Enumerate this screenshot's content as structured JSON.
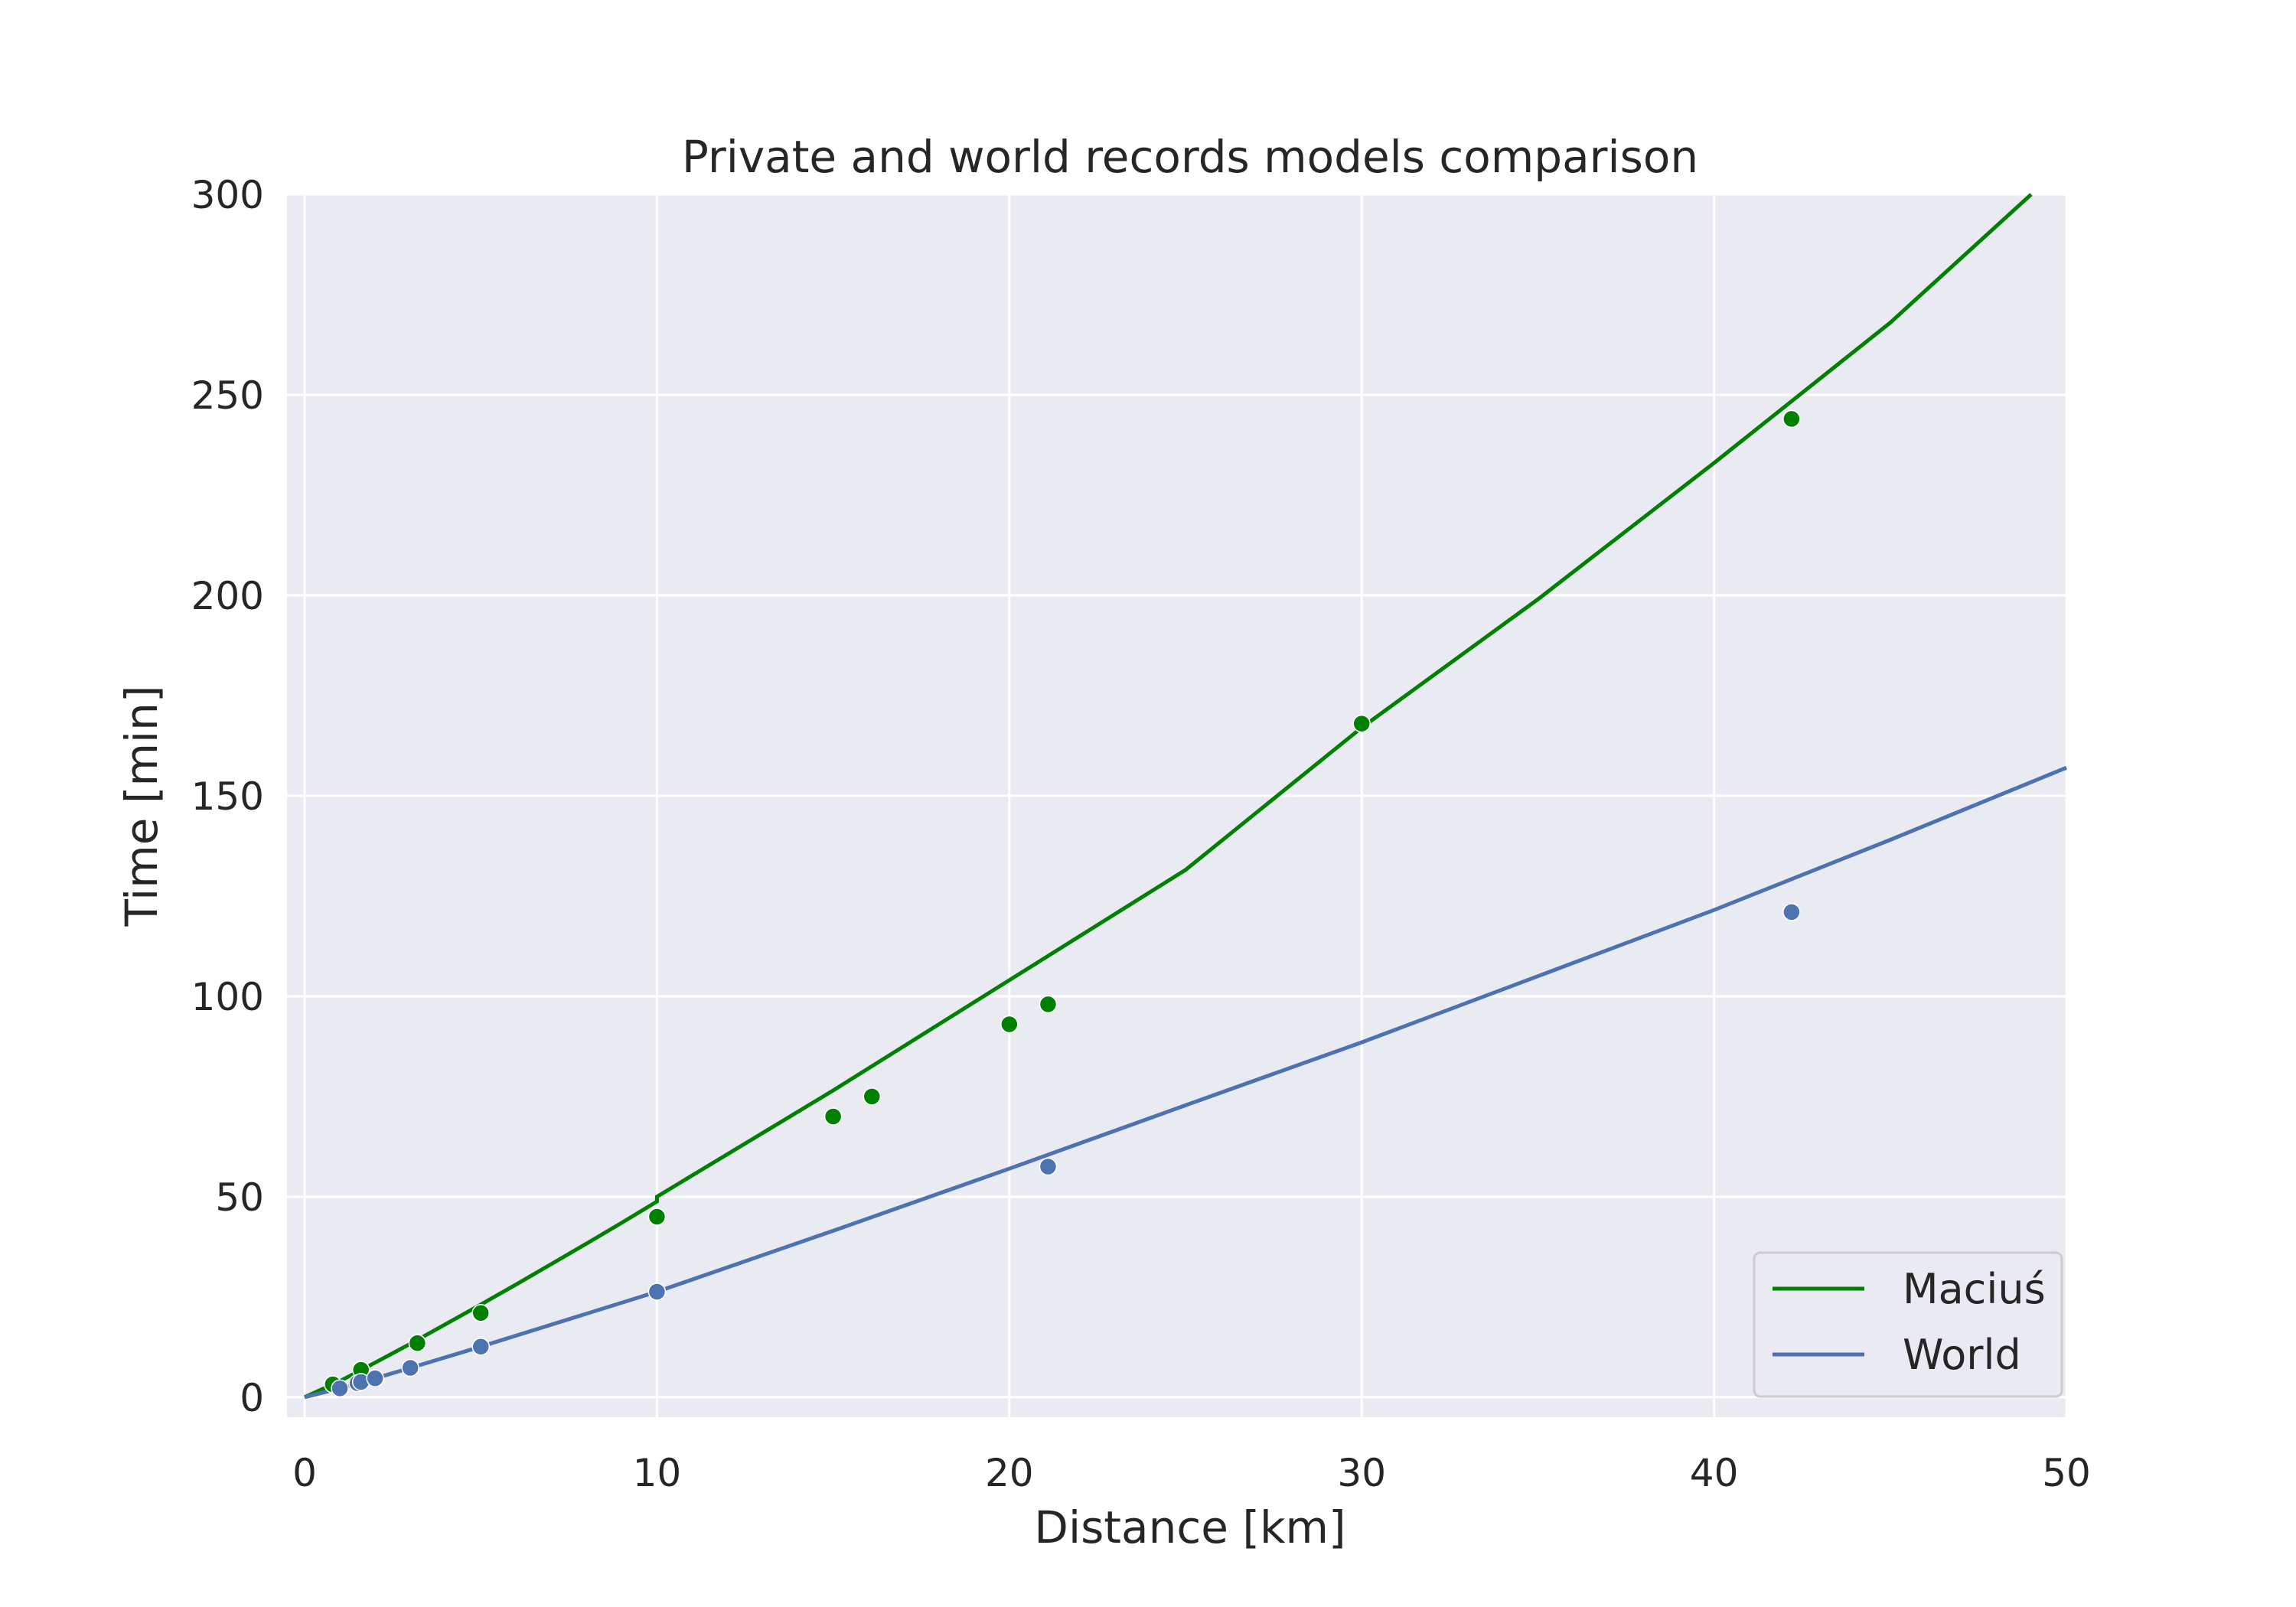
{
  "chart_data": {
    "type": "scatter",
    "title": "Private and world records models comparison",
    "xlabel": "Distance [km]",
    "ylabel": "Time [min]",
    "xlim": [
      -0.5,
      50
    ],
    "ylim": [
      -5,
      300
    ],
    "xticks": [
      0,
      10,
      20,
      30,
      40,
      50
    ],
    "yticks": [
      0,
      50,
      100,
      150,
      200,
      250,
      300
    ],
    "grid": true,
    "legend_position": "lower-right",
    "series": [
      {
        "name": "Maciuś",
        "color": "#008000",
        "points": {
          "x": [
            0.8,
            1.6,
            3.2,
            5,
            10,
            15,
            16.1,
            20,
            21.1,
            30,
            42.2
          ],
          "y": [
            3.2,
            6.8,
            13.5,
            21,
            45,
            70,
            75,
            93,
            98,
            168,
            244
          ]
        },
        "model": {
          "x": [
            0,
            1,
            2,
            3,
            4,
            5,
            6,
            7,
            8,
            9,
            10,
            10,
            15,
            20,
            25,
            30,
            35,
            40,
            45,
            49
          ],
          "y": [
            0,
            4,
            8.6,
            13.3,
            18.2,
            23.1,
            28.1,
            33.2,
            38.3,
            43.5,
            48.8,
            50,
            76.5,
            104,
            131.5,
            167,
            199,
            233,
            268,
            300
          ]
        }
      },
      {
        "name": "World",
        "color": "#4c72b0",
        "points": {
          "x": [
            1,
            1.5,
            1.6,
            2,
            3,
            5,
            10,
            21.1,
            42.2
          ],
          "y": [
            2.2,
            3.5,
            3.8,
            4.7,
            7.3,
            12.6,
            26.3,
            57.5,
            121
          ]
        },
        "model": {
          "x": [
            0,
            1,
            2,
            3,
            5,
            10,
            15,
            20,
            25,
            30,
            35,
            40,
            45,
            50
          ],
          "y": [
            0,
            2.2,
            4.7,
            7.3,
            12.6,
            26.3,
            41.5,
            57,
            72.8,
            88.5,
            105,
            121.5,
            139,
            157
          ]
        }
      }
    ]
  }
}
